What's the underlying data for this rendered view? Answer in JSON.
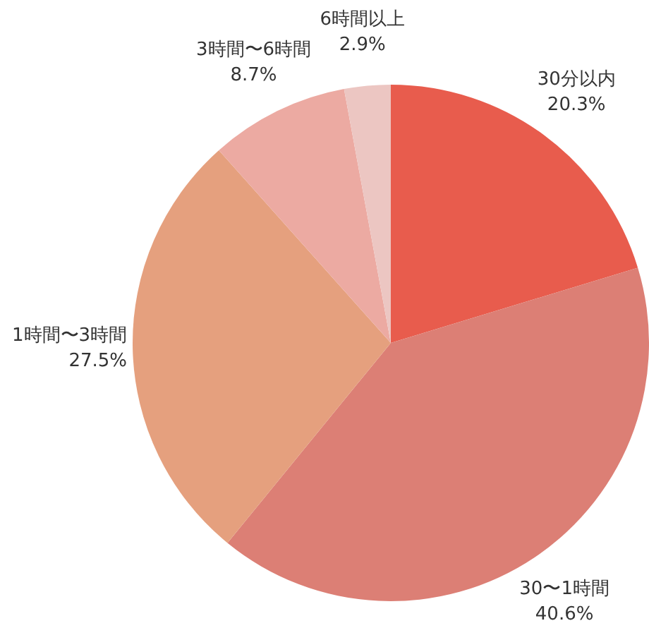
{
  "chart_data": {
    "type": "pie",
    "categories": [
      "30分以内",
      "30〜1時間",
      "1時間〜3時間",
      "3時間〜6時間",
      "6時間以上"
    ],
    "values": [
      20.3,
      40.6,
      27.5,
      8.7,
      2.9
    ],
    "value_labels": [
      "20.3%",
      "40.6%",
      "27.5%",
      "8.7%",
      "2.9%"
    ],
    "colors": [
      "#e85c4d",
      "#dc7f75",
      "#e5a07e",
      "#ecaaa2",
      "#ecc6c2"
    ]
  }
}
